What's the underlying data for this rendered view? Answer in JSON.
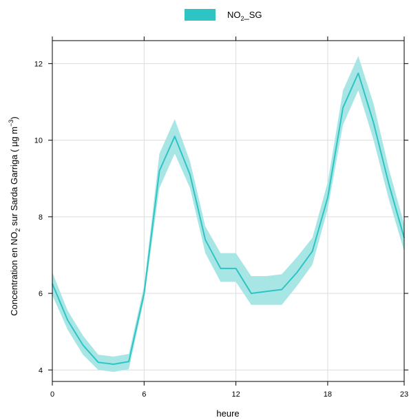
{
  "chart_data": {
    "type": "line",
    "title": "",
    "xlabel": "heure",
    "ylabel": {
      "prefix": "Concentration en NO",
      "sub": "2",
      "middle": " sur Sarda Garriga (  µg m",
      "sup": "−3",
      "suffix": ")"
    },
    "xlim": [
      0,
      23
    ],
    "ylim": [
      3.7,
      12.6
    ],
    "xticks": [
      0,
      6,
      12,
      18,
      23
    ],
    "yticks": [
      4,
      6,
      8,
      10,
      12
    ],
    "grid": true,
    "legend_position": "top-center",
    "series": [
      {
        "name": "NO2_SG",
        "legend_label": {
          "base": "NO",
          "sub": "2",
          "rest": "_SG"
        },
        "color": "#2ec4c4",
        "band_color": "#a8e6e6",
        "x": [
          0,
          1,
          2,
          3,
          4,
          5,
          6,
          7,
          8,
          9,
          10,
          11,
          12,
          13,
          14,
          15,
          16,
          17,
          18,
          19,
          20,
          21,
          22,
          23
        ],
        "y": [
          6.25,
          5.3,
          4.65,
          4.2,
          4.15,
          4.22,
          6.0,
          9.2,
          10.1,
          9.1,
          7.4,
          6.65,
          6.65,
          6.0,
          6.05,
          6.1,
          6.55,
          7.1,
          8.5,
          10.85,
          11.75,
          10.45,
          8.85,
          7.45
        ],
        "lower": [
          5.95,
          5.05,
          4.4,
          4.0,
          3.95,
          4.02,
          5.85,
          8.75,
          9.65,
          8.75,
          7.05,
          6.3,
          6.3,
          5.7,
          5.7,
          5.7,
          6.2,
          6.75,
          8.2,
          10.4,
          11.3,
          10.0,
          8.45,
          7.1
        ],
        "upper": [
          6.55,
          5.55,
          4.9,
          4.4,
          4.35,
          4.42,
          6.2,
          9.65,
          10.55,
          9.45,
          7.75,
          7.05,
          7.05,
          6.45,
          6.45,
          6.5,
          6.95,
          7.45,
          8.9,
          11.3,
          12.2,
          10.95,
          9.25,
          7.8
        ]
      }
    ]
  }
}
